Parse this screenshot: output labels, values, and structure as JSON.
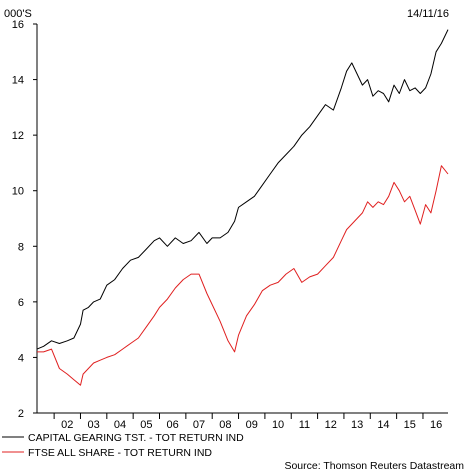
{
  "header": {
    "unit_label": "000'S",
    "date_label": "14/11/16"
  },
  "source": "Source: Thomson Reuters Datastream",
  "colors": {
    "series_1": "#000000",
    "series_2": "#e02020",
    "axis": "#000000"
  },
  "chart_data": {
    "type": "line",
    "title": "",
    "xlabel": "",
    "ylabel": "000'S",
    "xlim": [
      2001.35,
      2016.95
    ],
    "ylim": [
      2,
      16
    ],
    "yticks": [
      2,
      4,
      6,
      8,
      10,
      12,
      14,
      16
    ],
    "xticks": [
      "02",
      "03",
      "04",
      "05",
      "06",
      "07",
      "08",
      "09",
      "10",
      "11",
      "12",
      "13",
      "14",
      "15",
      "16"
    ],
    "grid": false,
    "legend": "bottom",
    "series": [
      {
        "name": "CAPITAL GEARING TST. - TOT RETURN IND",
        "color": "#000000",
        "x": [
          2001.35,
          2001.6,
          2001.9,
          2002.2,
          2002.5,
          2002.75,
          2003.0,
          2003.1,
          2003.3,
          2003.5,
          2003.75,
          2004.0,
          2004.3,
          2004.6,
          2004.9,
          2005.2,
          2005.5,
          2005.8,
          2006.0,
          2006.3,
          2006.6,
          2006.9,
          2007.2,
          2007.5,
          2007.8,
          2008.0,
          2008.3,
          2008.6,
          2008.85,
          2009.0,
          2009.3,
          2009.6,
          2009.9,
          2010.2,
          2010.5,
          2010.8,
          2011.1,
          2011.4,
          2011.7,
          2012.0,
          2012.3,
          2012.6,
          2012.9,
          2013.1,
          2013.3,
          2013.5,
          2013.7,
          2013.9,
          2014.1,
          2014.3,
          2014.5,
          2014.7,
          2014.9,
          2015.1,
          2015.3,
          2015.5,
          2015.7,
          2015.9,
          2016.1,
          2016.3,
          2016.5,
          2016.7,
          2016.95
        ],
        "y": [
          4.3,
          4.4,
          4.6,
          4.5,
          4.6,
          4.7,
          5.2,
          5.7,
          5.8,
          6.0,
          6.1,
          6.6,
          6.8,
          7.2,
          7.5,
          7.6,
          7.9,
          8.2,
          8.3,
          8.0,
          8.3,
          8.1,
          8.2,
          8.5,
          8.1,
          8.3,
          8.3,
          8.5,
          8.9,
          9.4,
          9.6,
          9.8,
          10.2,
          10.6,
          11.0,
          11.3,
          11.6,
          12.0,
          12.3,
          12.7,
          13.1,
          12.9,
          13.7,
          14.3,
          14.6,
          14.2,
          13.8,
          14.0,
          13.4,
          13.6,
          13.5,
          13.2,
          13.8,
          13.5,
          14.0,
          13.6,
          13.7,
          13.5,
          13.7,
          14.2,
          15.0,
          15.3,
          15.8
        ]
      },
      {
        "name": "FTSE ALL SHARE - TOT RETURN IND",
        "color": "#e02020",
        "x": [
          2001.35,
          2001.6,
          2001.9,
          2002.2,
          2002.5,
          2002.75,
          2003.0,
          2003.1,
          2003.3,
          2003.5,
          2003.75,
          2004.0,
          2004.3,
          2004.6,
          2004.9,
          2005.2,
          2005.5,
          2005.8,
          2006.0,
          2006.3,
          2006.6,
          2006.9,
          2007.2,
          2007.5,
          2007.8,
          2008.0,
          2008.3,
          2008.6,
          2008.85,
          2009.0,
          2009.3,
          2009.6,
          2009.9,
          2010.2,
          2010.5,
          2010.8,
          2011.1,
          2011.4,
          2011.7,
          2012.0,
          2012.3,
          2012.6,
          2012.9,
          2013.1,
          2013.3,
          2013.5,
          2013.7,
          2013.9,
          2014.1,
          2014.3,
          2014.5,
          2014.7,
          2014.9,
          2015.1,
          2015.3,
          2015.5,
          2015.7,
          2015.9,
          2016.1,
          2016.3,
          2016.5,
          2016.7,
          2016.95
        ],
        "y": [
          4.2,
          4.2,
          4.3,
          3.6,
          3.4,
          3.2,
          3.0,
          3.4,
          3.6,
          3.8,
          3.9,
          4.0,
          4.1,
          4.3,
          4.5,
          4.7,
          5.1,
          5.5,
          5.8,
          6.1,
          6.5,
          6.8,
          7.0,
          7.0,
          6.3,
          5.9,
          5.3,
          4.6,
          4.2,
          4.8,
          5.5,
          5.9,
          6.4,
          6.6,
          6.7,
          7.0,
          7.2,
          6.7,
          6.9,
          7.0,
          7.3,
          7.6,
          8.2,
          8.6,
          8.8,
          9.0,
          9.2,
          9.6,
          9.4,
          9.6,
          9.5,
          9.8,
          10.3,
          10.0,
          9.6,
          9.8,
          9.3,
          8.8,
          9.5,
          9.2,
          10.0,
          10.9,
          10.6
        ]
      }
    ]
  }
}
